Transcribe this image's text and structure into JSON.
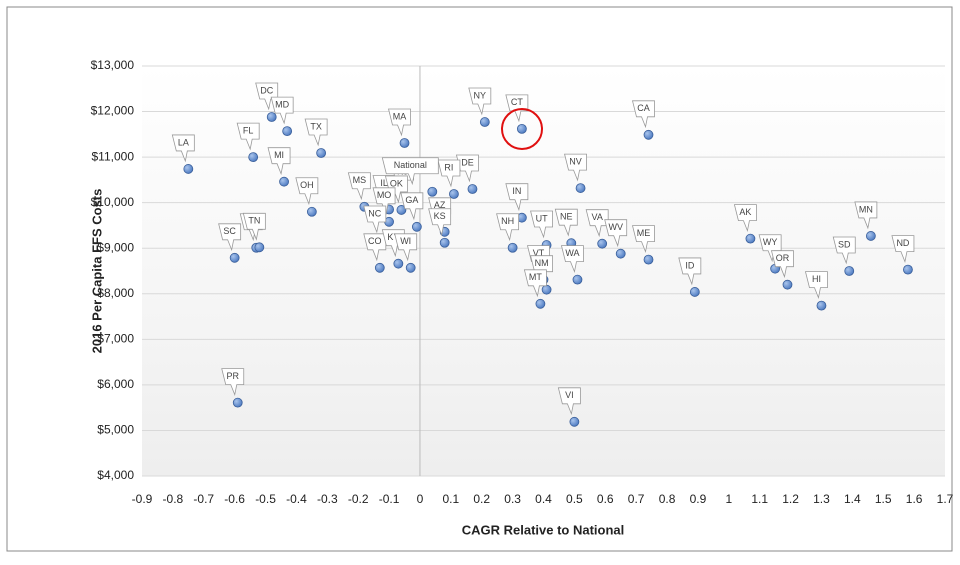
{
  "chart_data": {
    "type": "scatter",
    "x_label": "CAGR Relative to National",
    "y_label": "2016 Per Capita FFS Costs",
    "xlim": [
      -0.9,
      1.7
    ],
    "ylim": [
      4000,
      13000
    ],
    "xticks": [
      -0.9,
      -0.8,
      -0.7,
      -0.6,
      -0.5,
      -0.4,
      -0.3,
      -0.2,
      -0.1,
      0,
      0.1,
      0.2,
      0.3,
      0.4,
      0.5,
      0.6,
      0.7,
      0.8,
      0.9,
      1,
      1.1,
      1.2,
      1.3,
      1.4,
      1.5,
      1.6,
      1.7
    ],
    "yticks": [
      {
        "value": 4000,
        "label": "$4,000"
      },
      {
        "value": 5000,
        "label": "$5,000"
      },
      {
        "value": 6000,
        "label": "$6,000"
      },
      {
        "value": 7000,
        "label": "$7,000"
      },
      {
        "value": 8000,
        "label": "$8,000"
      },
      {
        "value": 9000,
        "label": "$9,000"
      },
      {
        "value": 10000,
        "label": "$10,000"
      },
      {
        "value": 11000,
        "label": "$11,000"
      },
      {
        "value": 12000,
        "label": "$12,000"
      },
      {
        "value": 13000,
        "label": "$13,000"
      }
    ],
    "grid": true,
    "color": "#5b8fd6",
    "point_labels": [
      "LA",
      "SC",
      "AL",
      "TN",
      "PR",
      "FL",
      "DC",
      "MD",
      "MI",
      "TX",
      "OH",
      "IL",
      "MS",
      "NJ",
      "MA",
      "NY",
      "CT",
      "CA",
      "NV",
      "IN",
      "DE",
      "RI",
      "National",
      "OK",
      "GA",
      "MO",
      "NC",
      "CO",
      "KY",
      "WI",
      "AZ",
      "KS",
      "NH",
      "UT",
      "NE",
      "VA",
      "WV",
      "ME",
      "WA",
      "VT",
      "NM",
      "MT",
      "ID",
      "AK",
      "WY",
      "OR",
      "HI",
      "SD",
      "MN",
      "ND",
      "VI"
    ],
    "x": [
      -0.75,
      -0.6,
      -0.53,
      -0.52,
      -0.59,
      -0.54,
      -0.48,
      -0.43,
      -0.44,
      -0.32,
      -0.35,
      -0.1,
      -0.18,
      -0.04,
      -0.05,
      0.21,
      0.33,
      0.74,
      0.52,
      0.33,
      0.17,
      0.11,
      0.04,
      -0.06,
      -0.01,
      -0.1,
      -0.13,
      -0.13,
      -0.07,
      -0.03,
      0.08,
      0.08,
      0.3,
      0.41,
      0.49,
      0.59,
      0.65,
      0.74,
      0.51,
      0.4,
      0.41,
      0.39,
      0.89,
      1.07,
      1.15,
      1.19,
      1.3,
      1.39,
      1.46,
      1.58,
      0.5
    ],
    "values": [
      10740,
      8790,
      9010,
      9020,
      5610,
      11000,
      11880,
      11570,
      10460,
      11090,
      9800,
      9850,
      9910,
      10100,
      11310,
      11770,
      11620,
      11490,
      10320,
      9670,
      10300,
      10190,
      10240,
      9840,
      9470,
      9580,
      9180,
      8570,
      8660,
      8570,
      9360,
      9120,
      9010,
      9070,
      9110,
      9100,
      8880,
      8750,
      8310,
      8310,
      8090,
      7780,
      8040,
      9210,
      8550,
      8200,
      7740,
      8500,
      9270,
      8530,
      5190
    ]
  }
}
